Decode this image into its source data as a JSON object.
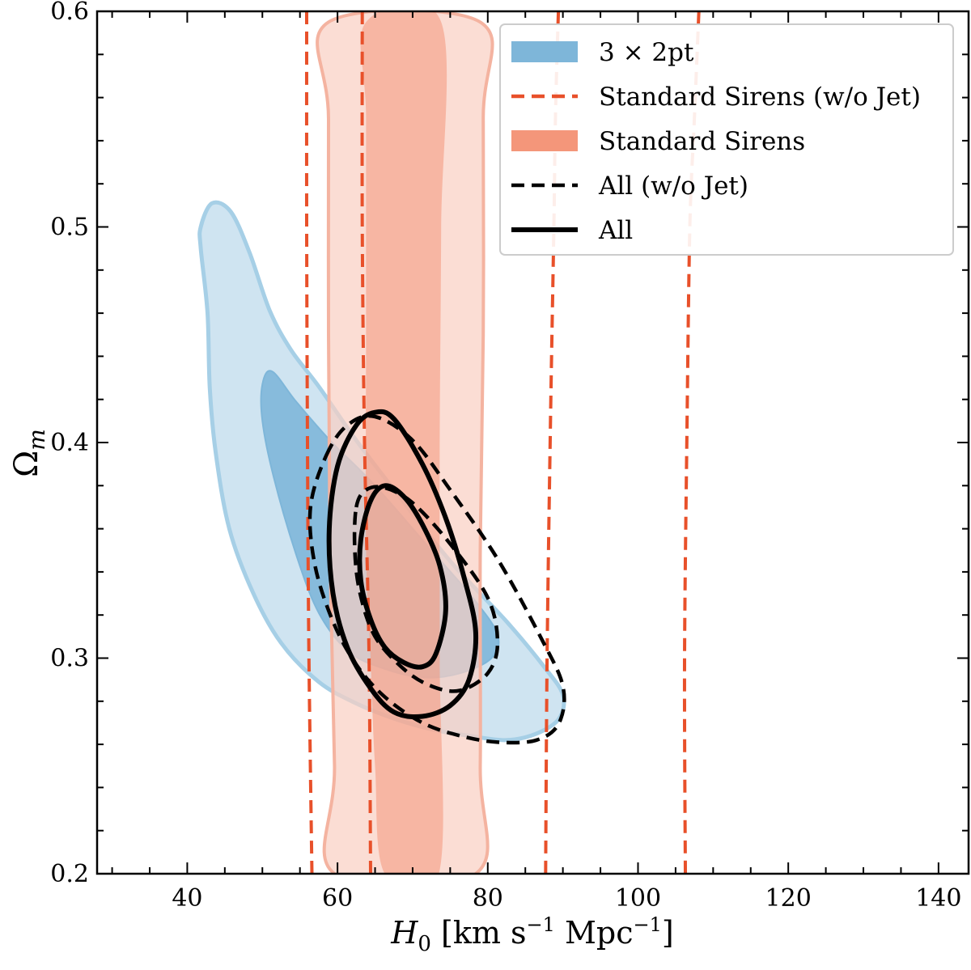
{
  "chart_data": {
    "type": "contour",
    "xlabel_main": "H",
    "xlabel_sub": "0",
    "xlabel_bracket_open": " [km s",
    "xlabel_exp1": "−1",
    "xlabel_mid": " Mpc",
    "xlabel_exp2": "−1",
    "xlabel_bracket_close": "]",
    "ylabel_main": "Ω",
    "ylabel_sub": "m",
    "xlim": [
      28,
      144
    ],
    "ylim": [
      0.2,
      0.6
    ],
    "x_ticks": [
      40,
      60,
      80,
      100,
      120,
      140
    ],
    "x_tick_labels": [
      "40",
      "60",
      "80",
      "100",
      "120",
      "140"
    ],
    "y_ticks": [
      0.2,
      0.3,
      0.4,
      0.5,
      0.6
    ],
    "y_tick_labels": [
      "0.2",
      "0.3",
      "0.4",
      "0.5",
      "0.6"
    ],
    "grid": false,
    "legend_position": "top-right",
    "legend": [
      {
        "label": "3 × 2pt",
        "style": "patch",
        "color": "#7eb6d9"
      },
      {
        "label": "Standard Sirens (w/o Jet)",
        "style": "dashed",
        "color": "#e8502a"
      },
      {
        "label": "Standard Sirens",
        "style": "patch",
        "color": "#f4967a"
      },
      {
        "label": "All (w/o Jet)",
        "style": "dashed",
        "color": "#000000"
      },
      {
        "label": "All",
        "style": "solid",
        "color": "#000000"
      }
    ],
    "colors": {
      "twopt_outer": "#c7dfee",
      "twopt_inner": "#7eb6d9",
      "twopt_edge": "#a6cfe6",
      "sirens_outer": "#f9cfc2",
      "sirens_inner": "#f4967a",
      "sirens_edge": "#f4b3a0",
      "sirens_nojet": "#e8502a",
      "all": "#000000"
    },
    "series": [
      {
        "name": "3 × 2pt",
        "level": "95%",
        "points": [
          [
            41.8,
            0.5
          ],
          [
            43.3,
            0.511
          ],
          [
            45.8,
            0.507
          ],
          [
            48.3,
            0.488
          ],
          [
            51.0,
            0.461
          ],
          [
            53.8,
            0.443
          ],
          [
            57.5,
            0.426
          ],
          [
            62.5,
            0.401
          ],
          [
            68.0,
            0.376
          ],
          [
            75.0,
            0.345
          ],
          [
            82.5,
            0.317
          ],
          [
            87.5,
            0.296
          ],
          [
            90.0,
            0.283
          ],
          [
            89.5,
            0.272
          ],
          [
            86.5,
            0.265
          ],
          [
            82.5,
            0.262
          ],
          [
            77.5,
            0.264
          ],
          [
            72.5,
            0.267
          ],
          [
            67.5,
            0.272
          ],
          [
            62.5,
            0.279
          ],
          [
            57.5,
            0.289
          ],
          [
            52.5,
            0.307
          ],
          [
            48.8,
            0.33
          ],
          [
            45.6,
            0.36
          ],
          [
            43.8,
            0.395
          ],
          [
            43.0,
            0.425
          ],
          [
            42.7,
            0.46
          ],
          [
            41.8,
            0.49
          ]
        ]
      },
      {
        "name": "3 × 2pt",
        "level": "68%",
        "points": [
          [
            50.0,
            0.427
          ],
          [
            51.3,
            0.433
          ],
          [
            54.5,
            0.419
          ],
          [
            59.0,
            0.401
          ],
          [
            65.0,
            0.38
          ],
          [
            72.5,
            0.35
          ],
          [
            78.0,
            0.328
          ],
          [
            81.3,
            0.311
          ],
          [
            80.5,
            0.3
          ],
          [
            76.3,
            0.293
          ],
          [
            71.5,
            0.291
          ],
          [
            66.3,
            0.295
          ],
          [
            61.5,
            0.303
          ],
          [
            57.5,
            0.321
          ],
          [
            54.5,
            0.348
          ],
          [
            51.5,
            0.384
          ],
          [
            50.0,
            0.41
          ]
        ]
      },
      {
        "name": "Standard Sirens",
        "level": "95%",
        "points": [
          [
            58.8,
            0.595
          ],
          [
            79.0,
            0.595
          ],
          [
            79.4,
            0.55
          ],
          [
            79.4,
            0.45
          ],
          [
            79.0,
            0.35
          ],
          [
            79.0,
            0.25
          ],
          [
            78.4,
            0.2
          ],
          [
            59.6,
            0.2
          ],
          [
            59.6,
            0.25
          ],
          [
            59.0,
            0.35
          ],
          [
            58.8,
            0.45
          ],
          [
            58.8,
            0.55
          ]
        ]
      },
      {
        "name": "Standard Sirens",
        "level": "68%",
        "points": [
          [
            63.8,
            0.595
          ],
          [
            73.8,
            0.595
          ],
          [
            73.8,
            0.5
          ],
          [
            73.6,
            0.4
          ],
          [
            73.6,
            0.3
          ],
          [
            73.5,
            0.2
          ],
          [
            66.3,
            0.2
          ],
          [
            65.0,
            0.25
          ],
          [
            64.4,
            0.3
          ],
          [
            63.8,
            0.35
          ],
          [
            63.8,
            0.45
          ],
          [
            63.8,
            0.55
          ]
        ]
      },
      {
        "name": "Standard Sirens (w/o Jet)",
        "level": "95%-left",
        "points": [
          [
            55.9,
            0.6
          ],
          [
            55.9,
            0.5
          ],
          [
            56.0,
            0.4
          ],
          [
            56.2,
            0.3
          ],
          [
            56.6,
            0.2
          ]
        ]
      },
      {
        "name": "Standard Sirens (w/o Jet)",
        "level": "68%-left",
        "points": [
          [
            63.3,
            0.6
          ],
          [
            63.3,
            0.5
          ],
          [
            63.6,
            0.4
          ],
          [
            64.2,
            0.3
          ],
          [
            64.4,
            0.2
          ]
        ]
      },
      {
        "name": "Standard Sirens (w/o Jet)",
        "level": "68%-right",
        "points": [
          [
            89.4,
            0.6
          ],
          [
            89.0,
            0.55
          ],
          [
            88.8,
            0.5
          ],
          [
            88.3,
            0.4
          ],
          [
            87.9,
            0.3
          ],
          [
            87.7,
            0.2
          ]
        ]
      },
      {
        "name": "Standard Sirens (w/o Jet)",
        "level": "95%-right",
        "points": [
          [
            108.1,
            0.6
          ],
          [
            107.5,
            0.55
          ],
          [
            106.9,
            0.5
          ],
          [
            106.5,
            0.4
          ],
          [
            106.2,
            0.3
          ],
          [
            106.3,
            0.2
          ]
        ]
      },
      {
        "name": "All (w/o Jet)",
        "level": "95%",
        "points": [
          [
            58.5,
            0.394
          ],
          [
            61.3,
            0.408
          ],
          [
            65.0,
            0.412
          ],
          [
            70.0,
            0.401
          ],
          [
            75.0,
            0.378
          ],
          [
            81.3,
            0.346
          ],
          [
            87.0,
            0.31
          ],
          [
            90.0,
            0.287
          ],
          [
            89.5,
            0.27
          ],
          [
            86.5,
            0.262
          ],
          [
            81.3,
            0.261
          ],
          [
            76.3,
            0.264
          ],
          [
            71.3,
            0.27
          ],
          [
            66.3,
            0.282
          ],
          [
            62.5,
            0.297
          ],
          [
            59.4,
            0.317
          ],
          [
            57.0,
            0.343
          ],
          [
            56.4,
            0.37
          ]
        ]
      },
      {
        "name": "All (w/o Jet)",
        "level": "68%",
        "points": [
          [
            62.5,
            0.37
          ],
          [
            63.8,
            0.378
          ],
          [
            66.3,
            0.379
          ],
          [
            70.0,
            0.372
          ],
          [
            75.0,
            0.353
          ],
          [
            80.0,
            0.328
          ],
          [
            81.3,
            0.307
          ],
          [
            80.0,
            0.293
          ],
          [
            76.3,
            0.285
          ],
          [
            72.5,
            0.287
          ],
          [
            68.8,
            0.295
          ],
          [
            65.0,
            0.31
          ],
          [
            63.0,
            0.33
          ],
          [
            62.3,
            0.35
          ]
        ]
      },
      {
        "name": "All",
        "level": "95%",
        "points": [
          [
            65.0,
            0.414
          ],
          [
            67.5,
            0.411
          ],
          [
            71.3,
            0.39
          ],
          [
            74.4,
            0.365
          ],
          [
            76.8,
            0.338
          ],
          [
            78.4,
            0.312
          ],
          [
            77.5,
            0.29
          ],
          [
            75.0,
            0.278
          ],
          [
            71.3,
            0.273
          ],
          [
            67.5,
            0.275
          ],
          [
            64.4,
            0.286
          ],
          [
            61.3,
            0.305
          ],
          [
            59.4,
            0.33
          ],
          [
            58.9,
            0.36
          ],
          [
            60.0,
            0.389
          ],
          [
            62.5,
            0.408
          ]
        ]
      },
      {
        "name": "All",
        "level": "68%",
        "points": [
          [
            66.3,
            0.38
          ],
          [
            68.8,
            0.375
          ],
          [
            71.3,
            0.362
          ],
          [
            73.6,
            0.343
          ],
          [
            74.4,
            0.322
          ],
          [
            73.1,
            0.302
          ],
          [
            71.3,
            0.296
          ],
          [
            68.8,
            0.298
          ],
          [
            66.3,
            0.305
          ],
          [
            64.4,
            0.318
          ],
          [
            63.1,
            0.336
          ],
          [
            63.1,
            0.355
          ],
          [
            64.4,
            0.373
          ]
        ]
      }
    ]
  }
}
